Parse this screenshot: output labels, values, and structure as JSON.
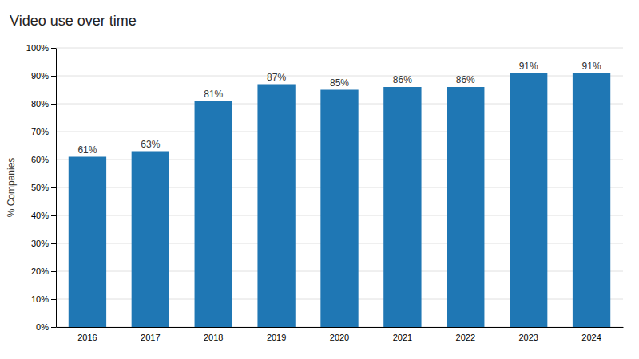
{
  "chart_data": {
    "type": "bar",
    "title": "Video use over time",
    "categories": [
      "2016",
      "2017",
      "2018",
      "2019",
      "2020",
      "2021",
      "2022",
      "2023",
      "2024"
    ],
    "values": [
      61,
      63,
      81,
      87,
      85,
      86,
      86,
      91,
      91
    ],
    "value_labels": [
      "61%",
      "63%",
      "81%",
      "87%",
      "85%",
      "86%",
      "86%",
      "91%",
      "91%"
    ],
    "data_labels": true,
    "ylabel": "% Companies",
    "ylim": [
      0,
      100
    ],
    "yticks": [
      {
        "value": 0,
        "label": "0%"
      },
      {
        "value": 10,
        "label": "10%"
      },
      {
        "value": 20,
        "label": "20%"
      },
      {
        "value": 30,
        "label": "30%"
      },
      {
        "value": 40,
        "label": "40%"
      },
      {
        "value": 50,
        "label": "50%"
      },
      {
        "value": 60,
        "label": "60%"
      },
      {
        "value": 70,
        "label": "70%"
      },
      {
        "value": 80,
        "label": "80%"
      },
      {
        "value": 90,
        "label": "90%"
      },
      {
        "value": 100,
        "label": "100%"
      }
    ],
    "grid": true
  }
}
